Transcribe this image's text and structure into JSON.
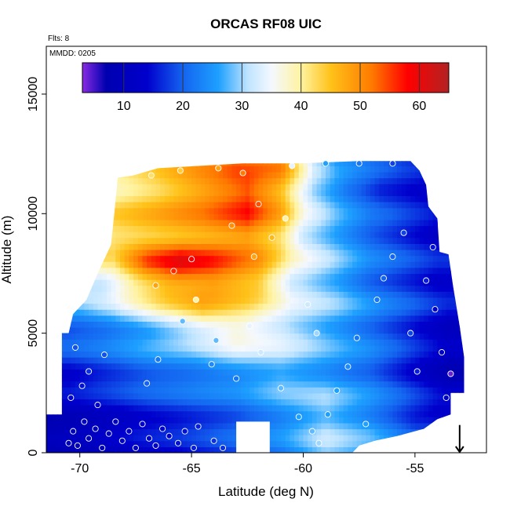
{
  "chart_data": {
    "type": "heatmap",
    "title": "ORCAS RF08 UIC",
    "subtitle_flights": "Flts: 8",
    "subtitle_date": "MMDD: 0205",
    "xlabel": "Latitude (deg N)",
    "ylabel": "Altitude (m)",
    "xlim": [
      -71.5,
      -51.8
    ],
    "ylim": [
      0,
      17000
    ],
    "x_ticks": [
      -70,
      -65,
      -60,
      -55
    ],
    "x_tick_labels": [
      "-70",
      "-65",
      "-60",
      "-55"
    ],
    "y_ticks": [
      0,
      5000,
      10000,
      15000
    ],
    "y_tick_labels": [
      "0",
      "5000",
      "10000",
      "15000"
    ],
    "colorbar": {
      "range": [
        3,
        65
      ],
      "ticks": [
        10,
        20,
        30,
        40,
        50,
        60
      ],
      "tick_labels": [
        "10",
        "20",
        "30",
        "40",
        "50",
        "60"
      ],
      "stops": [
        {
          "v": 3,
          "color": "#8a2be2"
        },
        {
          "v": 7,
          "color": "#0000b0"
        },
        {
          "v": 14,
          "color": "#0000cd"
        },
        {
          "v": 20,
          "color": "#1464f0"
        },
        {
          "v": 26,
          "color": "#1ea0ff"
        },
        {
          "v": 31,
          "color": "#bfe4ff"
        },
        {
          "v": 35,
          "color": "#f4f8ff"
        },
        {
          "v": 40,
          "color": "#fff3a0"
        },
        {
          "v": 45,
          "color": "#ffc21a"
        },
        {
          "v": 52,
          "color": "#ff7a00"
        },
        {
          "v": 58,
          "color": "#ff0000"
        },
        {
          "v": 65,
          "color": "#b22222"
        }
      ]
    },
    "grid": false,
    "legend": "colorbar top",
    "profile": [
      {
        "alt": 12000,
        "lat": [
          -68.0,
          -66.0,
          -63.0,
          -61.0,
          -59.5,
          -58.5,
          -57.0,
          -55.5,
          -54.3
        ],
        "v": [
          38,
          44,
          52,
          50,
          30,
          24,
          20,
          16,
          14
        ]
      },
      {
        "alt": 11200,
        "lat": [
          -68.5,
          -66.5,
          -64.5,
          -62.5,
          -61.0,
          -59.5,
          -58.0,
          -56.5,
          -54.0
        ],
        "v": [
          40,
          44,
          50,
          56,
          48,
          32,
          24,
          18,
          14
        ]
      },
      {
        "alt": 10000,
        "lat": [
          -68.5,
          -66.5,
          -64.5,
          -62.5,
          -61.0,
          -60.0,
          -58.5,
          -57.0,
          -54.0
        ],
        "v": [
          42,
          46,
          50,
          56,
          46,
          34,
          26,
          20,
          13
        ]
      },
      {
        "alt": 9000,
        "lat": [
          -68.5,
          -66.5,
          -64.5,
          -62.5,
          -61.0,
          -60.0,
          -58.5,
          -57.0,
          -54.0
        ],
        "v": [
          44,
          46,
          48,
          50,
          44,
          34,
          28,
          22,
          14
        ]
      },
      {
        "alt": 8000,
        "lat": [
          -68.5,
          -67.0,
          -65.5,
          -64.0,
          -62.0,
          -60.5,
          -58.5,
          -57.0,
          -54.0
        ],
        "v": [
          40,
          54,
          60,
          56,
          48,
          36,
          28,
          22,
          15
        ]
      },
      {
        "alt": 7000,
        "lat": [
          -69.0,
          -67.5,
          -66.0,
          -64.0,
          -62.0,
          -60.5,
          -58.5,
          -57.0,
          -54.0
        ],
        "v": [
          33,
          42,
          48,
          50,
          46,
          34,
          28,
          22,
          15
        ]
      },
      {
        "alt": 6000,
        "lat": [
          -70.0,
          -68.5,
          -66.5,
          -64.5,
          -62.5,
          -60.5,
          -58.5,
          -56.5,
          -53.5
        ],
        "v": [
          26,
          30,
          38,
          44,
          40,
          32,
          28,
          22,
          14
        ]
      },
      {
        "alt": 5000,
        "lat": [
          -70.5,
          -69.0,
          -67.0,
          -65.0,
          -63.0,
          -61.0,
          -59.0,
          -57.0,
          -53.5
        ],
        "v": [
          20,
          22,
          26,
          32,
          38,
          34,
          28,
          22,
          12
        ]
      },
      {
        "alt": 4000,
        "lat": [
          -70.5,
          -69.0,
          -67.0,
          -65.0,
          -63.0,
          -61.0,
          -59.0,
          -57.0,
          -53.5
        ],
        "v": [
          18,
          20,
          24,
          26,
          30,
          30,
          26,
          22,
          10
        ]
      },
      {
        "alt": 3000,
        "lat": [
          -70.5,
          -69.0,
          -67.0,
          -65.0,
          -63.0,
          -61.0,
          -59.0,
          -57.0,
          -53.5
        ],
        "v": [
          14,
          17,
          20,
          22,
          24,
          28,
          26,
          22,
          10
        ]
      },
      {
        "alt": 2000,
        "lat": [
          -71.0,
          -69.0,
          -67.0,
          -65.0,
          -63.0,
          -61.0,
          -59.0,
          -57.0,
          -54.0
        ],
        "v": [
          12,
          14,
          17,
          19,
          21,
          26,
          30,
          24,
          14
        ]
      },
      {
        "alt": 1000,
        "lat": [
          -71.5,
          -69.5,
          -67.5,
          -65.5,
          -63.0,
          -61.0,
          -59.0,
          -57.0,
          -55.0
        ],
        "v": [
          8,
          10,
          14,
          16,
          20,
          24,
          30,
          26,
          18
        ]
      },
      {
        "alt": 0,
        "lat": [
          -71.5,
          -69.5,
          -67.5,
          -65.5,
          -63.0,
          -61.0,
          -59.0,
          -57.0,
          -55.0
        ],
        "v": [
          8,
          9,
          12,
          14,
          18,
          22,
          30,
          26,
          20
        ]
      }
    ],
    "domain_boundary": [
      [
        -71.5,
        0
      ],
      [
        -71.5,
        1600
      ],
      [
        -70.8,
        1600
      ],
      [
        -70.8,
        5000
      ],
      [
        -70.5,
        5000
      ],
      [
        -70.3,
        5800
      ],
      [
        -69.7,
        6400
      ],
      [
        -69.2,
        7500
      ],
      [
        -68.6,
        8700
      ],
      [
        -68.5,
        9600
      ],
      [
        -68.3,
        11500
      ],
      [
        -67.6,
        11600
      ],
      [
        -66.5,
        11900
      ],
      [
        -62.7,
        12100
      ],
      [
        -60.2,
        12100
      ],
      [
        -57.5,
        12200
      ],
      [
        -55.2,
        12200
      ],
      [
        -54.8,
        11800
      ],
      [
        -54.5,
        11200
      ],
      [
        -54.4,
        10300
      ],
      [
        -54.0,
        9800
      ],
      [
        -53.9,
        8400
      ],
      [
        -53.5,
        8300
      ],
      [
        -53.3,
        7000
      ],
      [
        -53.0,
        5300
      ],
      [
        -52.8,
        4000
      ],
      [
        -52.8,
        2500
      ],
      [
        -53.4,
        2500
      ],
      [
        -53.4,
        1600
      ],
      [
        -54.0,
        1400
      ],
      [
        -54.6,
        1000
      ],
      [
        -55.8,
        700
      ],
      [
        -56.8,
        500
      ],
      [
        -57.5,
        300
      ],
      [
        -57.8,
        0
      ]
    ],
    "notch": [
      [
        -63.0,
        0
      ],
      [
        -63.0,
        1300
      ],
      [
        -61.5,
        1300
      ],
      [
        -61.5,
        0
      ]
    ],
    "observations": [
      {
        "lat": -70.5,
        "alt": 400,
        "v": 8
      },
      {
        "lat": -70.3,
        "alt": 900,
        "v": 8
      },
      {
        "lat": -70.1,
        "alt": 300,
        "v": 8
      },
      {
        "lat": -69.8,
        "alt": 1300,
        "v": 10
      },
      {
        "lat": -69.6,
        "alt": 600,
        "v": 9
      },
      {
        "lat": -69.3,
        "alt": 1000,
        "v": 9
      },
      {
        "lat": -69.0,
        "alt": 200,
        "v": 9
      },
      {
        "lat": -68.7,
        "alt": 800,
        "v": 10
      },
      {
        "lat": -68.4,
        "alt": 1300,
        "v": 11
      },
      {
        "lat": -68.1,
        "alt": 500,
        "v": 11
      },
      {
        "lat": -67.8,
        "alt": 900,
        "v": 12
      },
      {
        "lat": -67.5,
        "alt": 200,
        "v": 12
      },
      {
        "lat": -67.2,
        "alt": 1200,
        "v": 13
      },
      {
        "lat": -66.9,
        "alt": 600,
        "v": 13
      },
      {
        "lat": -66.6,
        "alt": 300,
        "v": 13
      },
      {
        "lat": -66.3,
        "alt": 1000,
        "v": 14
      },
      {
        "lat": -66.0,
        "alt": 700,
        "v": 14
      },
      {
        "lat": -65.6,
        "alt": 400,
        "v": 15
      },
      {
        "lat": -65.3,
        "alt": 900,
        "v": 15
      },
      {
        "lat": -64.9,
        "alt": 200,
        "v": 16
      },
      {
        "lat": -64.7,
        "alt": 1100,
        "v": 16
      },
      {
        "lat": -64.0,
        "alt": 500,
        "v": 17
      },
      {
        "lat": -63.6,
        "alt": 200,
        "v": 17
      },
      {
        "lat": -70.4,
        "alt": 2300,
        "v": 14
      },
      {
        "lat": -69.9,
        "alt": 2800,
        "v": 15
      },
      {
        "lat": -69.6,
        "alt": 3400,
        "v": 17
      },
      {
        "lat": -69.2,
        "alt": 2000,
        "v": 14
      },
      {
        "lat": -68.9,
        "alt": 4100,
        "v": 19
      },
      {
        "lat": -70.2,
        "alt": 4400,
        "v": 19
      },
      {
        "lat": -67.0,
        "alt": 2900,
        "v": 20
      },
      {
        "lat": -66.5,
        "alt": 3900,
        "v": 22
      },
      {
        "lat": -65.4,
        "alt": 5500,
        "v": 28
      },
      {
        "lat": -64.8,
        "alt": 6400,
        "v": 40
      },
      {
        "lat": -64.1,
        "alt": 3700,
        "v": 24
      },
      {
        "lat": -63.9,
        "alt": 4700,
        "v": 28
      },
      {
        "lat": -63.0,
        "alt": 3100,
        "v": 22
      },
      {
        "lat": -62.4,
        "alt": 5300,
        "v": 34
      },
      {
        "lat": -61.9,
        "alt": 4200,
        "v": 32
      },
      {
        "lat": -61.0,
        "alt": 2700,
        "v": 28
      },
      {
        "lat": -60.2,
        "alt": 1500,
        "v": 26
      },
      {
        "lat": -59.6,
        "alt": 900,
        "v": 28
      },
      {
        "lat": -59.3,
        "alt": 400,
        "v": 30
      },
      {
        "lat": -58.9,
        "alt": 1600,
        "v": 26
      },
      {
        "lat": -58.5,
        "alt": 2600,
        "v": 26
      },
      {
        "lat": -58.0,
        "alt": 3600,
        "v": 24
      },
      {
        "lat": -57.6,
        "alt": 4800,
        "v": 22
      },
      {
        "lat": -57.2,
        "alt": 1200,
        "v": 26
      },
      {
        "lat": -56.7,
        "alt": 6400,
        "v": 22
      },
      {
        "lat": -56.4,
        "alt": 7300,
        "v": 20
      },
      {
        "lat": -56.0,
        "alt": 8200,
        "v": 20
      },
      {
        "lat": -55.5,
        "alt": 9200,
        "v": 18
      },
      {
        "lat": -55.2,
        "alt": 5000,
        "v": 18
      },
      {
        "lat": -54.9,
        "alt": 3400,
        "v": 16
      },
      {
        "lat": -54.5,
        "alt": 7200,
        "v": 16
      },
      {
        "lat": -54.2,
        "alt": 8600,
        "v": 15
      },
      {
        "lat": -54.1,
        "alt": 6000,
        "v": 14
      },
      {
        "lat": -53.8,
        "alt": 4200,
        "v": 12
      },
      {
        "lat": -53.6,
        "alt": 2300,
        "v": 12
      },
      {
        "lat": -53.4,
        "alt": 3300,
        "v": 4
      },
      {
        "lat": -62.7,
        "alt": 11700,
        "v": 52
      },
      {
        "lat": -63.8,
        "alt": 11900,
        "v": 48
      },
      {
        "lat": -65.5,
        "alt": 11800,
        "v": 44
      },
      {
        "lat": -66.8,
        "alt": 11600,
        "v": 42
      },
      {
        "lat": -60.5,
        "alt": 12000,
        "v": 34
      },
      {
        "lat": -59.0,
        "alt": 12100,
        "v": 26
      },
      {
        "lat": -57.5,
        "alt": 12100,
        "v": 22
      },
      {
        "lat": -56.0,
        "alt": 12100,
        "v": 18
      },
      {
        "lat": -62.0,
        "alt": 10400,
        "v": 54
      },
      {
        "lat": -61.4,
        "alt": 9000,
        "v": 46
      },
      {
        "lat": -62.2,
        "alt": 8200,
        "v": 48
      },
      {
        "lat": -65.8,
        "alt": 7600,
        "v": 56
      },
      {
        "lat": -66.6,
        "alt": 7000,
        "v": 48
      },
      {
        "lat": -65.0,
        "alt": 8100,
        "v": 58
      },
      {
        "lat": -60.8,
        "alt": 9800,
        "v": 40
      },
      {
        "lat": -63.2,
        "alt": 9500,
        "v": 50
      },
      {
        "lat": -59.4,
        "alt": 5000,
        "v": 30
      },
      {
        "lat": -59.8,
        "alt": 6200,
        "v": 32
      }
    ],
    "arrow": {
      "lat": -53.0,
      "alt_top": 700,
      "alt_bottom": 0
    }
  }
}
